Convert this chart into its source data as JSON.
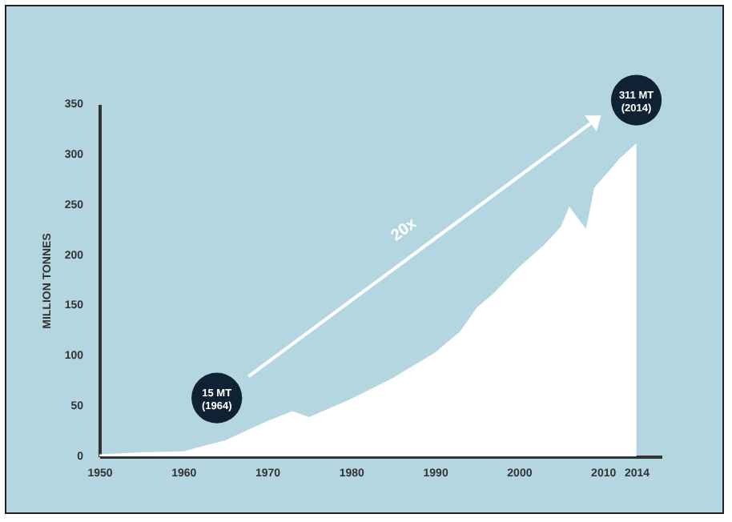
{
  "chart_data": {
    "type": "area",
    "ylabel": "MILLION TONNES",
    "x": [
      1950,
      1955,
      1960,
      1965,
      1970,
      1973,
      1975,
      1980,
      1985,
      1990,
      1993,
      1995,
      1997,
      2000,
      2003,
      2005,
      2006,
      2008,
      2009,
      2011,
      2012,
      2014
    ],
    "series": [
      {
        "color": "#ffffff",
        "values": [
          2,
          4,
          5,
          16,
          35,
          45,
          39,
          57,
          78,
          103,
          124,
          148,
          162,
          188,
          210,
          228,
          248,
          226,
          267,
          286,
          296,
          311
        ]
      }
    ],
    "xlim": [
      1950,
      2017
    ],
    "xticks": [
      1950,
      1960,
      1970,
      1980,
      1990,
      2000,
      2010,
      2014
    ],
    "ylim": [
      0,
      350
    ],
    "yticks": [
      0,
      50,
      100,
      150,
      200,
      250,
      300,
      350
    ],
    "grid": false,
    "annotations": [
      {
        "text": "15 MT\n(1964)",
        "x": 1964,
        "y": 15
      },
      {
        "text": "311 MT\n(2014)",
        "x": 2014,
        "y": 311
      },
      "20x"
    ]
  }
}
